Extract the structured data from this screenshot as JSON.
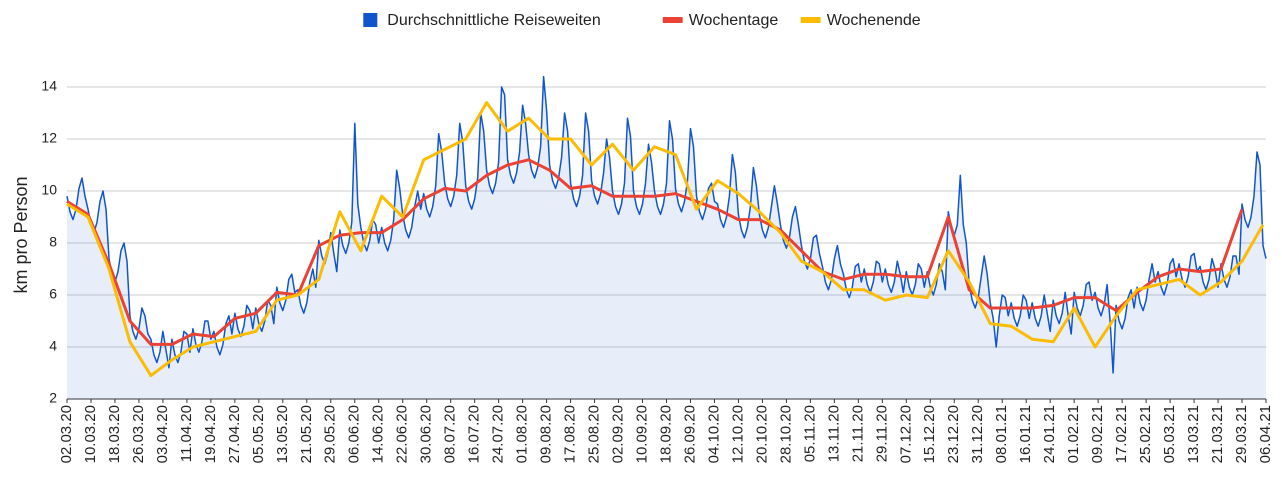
{
  "chart_data": {
    "type": "line",
    "y_label": "km pro Person",
    "xlim": [
      0,
      400
    ],
    "ylim": [
      2,
      14.6
    ],
    "yticks": [
      2,
      4,
      6,
      8,
      10,
      12,
      14
    ],
    "grid": true,
    "legend": "top",
    "xticks": [
      {
        "value": 0,
        "label": "02.03.20"
      },
      {
        "value": 8,
        "label": "10.03.20"
      },
      {
        "value": 16,
        "label": "18.03.20"
      },
      {
        "value": 24,
        "label": "26.03.20"
      },
      {
        "value": 32,
        "label": "03.04.20"
      },
      {
        "value": 40,
        "label": "11.04.20"
      },
      {
        "value": 48,
        "label": "19.04.20"
      },
      {
        "value": 56,
        "label": "27.04.20"
      },
      {
        "value": 64,
        "label": "05.05.20"
      },
      {
        "value": 72,
        "label": "13.05.20"
      },
      {
        "value": 80,
        "label": "21.05.20"
      },
      {
        "value": 88,
        "label": "29.05.20"
      },
      {
        "value": 96,
        "label": "06.06.20"
      },
      {
        "value": 104,
        "label": "14.06.20"
      },
      {
        "value": 112,
        "label": "22.06.20"
      },
      {
        "value": 120,
        "label": "30.06.20"
      },
      {
        "value": 128,
        "label": "08.07.20"
      },
      {
        "value": 136,
        "label": "16.07.20"
      },
      {
        "value": 144,
        "label": "24.07.20"
      },
      {
        "value": 152,
        "label": "01.08.20"
      },
      {
        "value": 160,
        "label": "09.08.20"
      },
      {
        "value": 168,
        "label": "17.08.20"
      },
      {
        "value": 176,
        "label": "25.08.20"
      },
      {
        "value": 184,
        "label": "02.09.20"
      },
      {
        "value": 192,
        "label": "10.09.20"
      },
      {
        "value": 200,
        "label": "18.09.20"
      },
      {
        "value": 208,
        "label": "26.09.20"
      },
      {
        "value": 216,
        "label": "04.10.20"
      },
      {
        "value": 224,
        "label": "12.10.20"
      },
      {
        "value": 232,
        "label": "20.10.20"
      },
      {
        "value": 240,
        "label": "28.10.20"
      },
      {
        "value": 248,
        "label": "05.11.20"
      },
      {
        "value": 256,
        "label": "13.11.20"
      },
      {
        "value": 264,
        "label": "21.11.20"
      },
      {
        "value": 272,
        "label": "29.11.20"
      },
      {
        "value": 280,
        "label": "07.12.20"
      },
      {
        "value": 288,
        "label": "15.12.20"
      },
      {
        "value": 296,
        "label": "23.12.20"
      },
      {
        "value": 304,
        "label": "31.12.20"
      },
      {
        "value": 312,
        "label": "08.01.21"
      },
      {
        "value": 320,
        "label": "16.01.21"
      },
      {
        "value": 328,
        "label": "24.01.21"
      },
      {
        "value": 336,
        "label": "01.02.21"
      },
      {
        "value": 344,
        "label": "09.02.21"
      },
      {
        "value": 352,
        "label": "17.02.21"
      },
      {
        "value": 360,
        "label": "25.02.21"
      },
      {
        "value": 368,
        "label": "05.03.21"
      },
      {
        "value": 376,
        "label": "13.03.21"
      },
      {
        "value": 384,
        "label": "21.03.21"
      },
      {
        "value": 392,
        "label": "29.03.21"
      },
      {
        "value": 400,
        "label": "06.04.21"
      }
    ],
    "series": [
      {
        "name": "Durchschnittliche Reiseweiten",
        "color": "#1155cc",
        "area": true,
        "x": [
          0,
          1,
          2,
          3,
          4,
          5,
          6,
          7,
          8,
          9,
          10,
          11,
          12,
          13,
          14,
          15,
          16,
          17,
          18,
          19,
          20,
          21,
          22,
          23,
          24,
          25,
          26,
          27,
          28,
          29,
          30,
          31,
          32,
          33,
          34,
          35,
          36,
          37,
          38,
          39,
          40,
          41,
          42,
          43,
          44,
          45,
          46,
          47,
          48,
          49,
          50,
          51,
          52,
          53,
          54,
          55,
          56,
          57,
          58,
          59,
          60,
          61,
          62,
          63,
          64,
          65,
          66,
          67,
          68,
          69,
          70,
          71,
          72,
          73,
          74,
          75,
          76,
          77,
          78,
          79,
          80,
          81,
          82,
          83,
          84,
          85,
          86,
          87,
          88,
          89,
          90,
          91,
          92,
          93,
          94,
          95,
          96,
          97,
          98,
          99,
          100,
          101,
          102,
          103,
          104,
          105,
          106,
          107,
          108,
          109,
          110,
          111,
          112,
          113,
          114,
          115,
          116,
          117,
          118,
          119,
          120,
          121,
          122,
          123,
          124,
          125,
          126,
          127,
          128,
          129,
          130,
          131,
          132,
          133,
          134,
          135,
          136,
          137,
          138,
          139,
          140,
          141,
          142,
          143,
          144,
          145,
          146,
          147,
          148,
          149,
          150,
          151,
          152,
          153,
          154,
          155,
          156,
          157,
          158,
          159,
          160,
          161,
          162,
          163,
          164,
          165,
          166,
          167,
          168,
          169,
          170,
          171,
          172,
          173,
          174,
          175,
          176,
          177,
          178,
          179,
          180,
          181,
          182,
          183,
          184,
          185,
          186,
          187,
          188,
          189,
          190,
          191,
          192,
          193,
          194,
          195,
          196,
          197,
          198,
          199,
          200,
          201,
          202,
          203,
          204,
          205,
          206,
          207,
          208,
          209,
          210,
          211,
          212,
          213,
          214,
          215,
          216,
          217,
          218,
          219,
          220,
          221,
          222,
          223,
          224,
          225,
          226,
          227,
          228,
          229,
          230,
          231,
          232,
          233,
          234,
          235,
          236,
          237,
          238,
          239,
          240,
          241,
          242,
          243,
          244,
          245,
          246,
          247,
          248,
          249,
          250,
          251,
          252,
          253,
          254,
          255,
          256,
          257,
          258,
          259,
          260,
          261,
          262,
          263,
          264,
          265,
          266,
          267,
          268,
          269,
          270,
          271,
          272,
          273,
          274,
          275,
          276,
          277,
          278,
          279,
          280,
          281,
          282,
          283,
          284,
          285,
          286,
          287,
          288,
          289,
          290,
          291,
          292,
          293,
          294,
          295,
          296,
          297,
          298,
          299,
          300,
          301,
          302,
          303,
          304,
          305,
          306,
          307,
          308,
          309,
          310,
          311,
          312,
          313,
          314,
          315,
          316,
          317,
          318,
          319,
          320,
          321,
          322,
          323,
          324,
          325,
          326,
          327,
          328,
          329,
          330,
          331,
          332,
          333,
          334,
          335,
          336,
          337,
          338,
          339,
          340,
          341,
          342,
          343,
          344,
          345,
          346,
          347,
          348,
          349,
          350,
          351,
          352,
          353,
          354,
          355,
          356,
          357,
          358,
          359,
          360,
          361,
          362,
          363,
          364,
          365,
          366,
          367,
          368,
          369,
          370,
          371,
          372,
          373,
          374,
          375,
          376,
          377,
          378,
          379,
          380,
          381,
          382,
          383,
          384,
          385,
          386,
          387,
          388,
          389,
          390,
          391,
          392,
          393,
          394,
          395,
          396,
          397,
          398,
          399,
          400
        ],
        "values": [
          9.8,
          9.2,
          8.9,
          9.3,
          10.1,
          10.5,
          9.8,
          9.3,
          8.7,
          8.4,
          8.8,
          9.6,
          10.0,
          9.3,
          7.4,
          6.8,
          6.5,
          6.9,
          7.7,
          8.0,
          7.3,
          5.2,
          4.6,
          4.3,
          4.7,
          5.5,
          5.2,
          4.5,
          4.3,
          3.7,
          3.4,
          3.8,
          4.6,
          3.9,
          3.2,
          4.3,
          3.7,
          3.4,
          3.8,
          4.6,
          4.5,
          3.8,
          4.7,
          4.1,
          3.8,
          4.2,
          5.0,
          5.0,
          4.3,
          4.6,
          4.0,
          3.7,
          4.1,
          4.9,
          5.2,
          4.5,
          5.3,
          4.7,
          4.4,
          4.8,
          5.6,
          5.4,
          4.7,
          5.5,
          4.9,
          4.6,
          5.0,
          5.8,
          5.6,
          4.9,
          6.3,
          5.7,
          5.4,
          5.8,
          6.6,
          6.8,
          6.1,
          6.2,
          5.6,
          5.3,
          5.7,
          6.5,
          7.0,
          6.3,
          8.1,
          7.5,
          7.2,
          7.6,
          8.4,
          7.6,
          6.9,
          8.5,
          7.9,
          7.6,
          8.0,
          8.8,
          12.6,
          9.5,
          8.6,
          8.0,
          7.7,
          8.1,
          8.9,
          8.7,
          8.0,
          8.6,
          8.0,
          7.7,
          8.1,
          8.9,
          10.8,
          10.1,
          9.1,
          8.5,
          8.2,
          8.6,
          9.4,
          10.0,
          9.3,
          9.9,
          9.3,
          9.0,
          9.4,
          10.2,
          12.2,
          11.5,
          10.3,
          9.7,
          9.4,
          9.8,
          10.6,
          12.6,
          11.9,
          10.2,
          9.6,
          9.3,
          9.7,
          10.5,
          13.0,
          12.3,
          10.8,
          10.2,
          9.9,
          10.3,
          11.1,
          14.0,
          13.7,
          11.2,
          10.6,
          10.3,
          10.7,
          11.5,
          13.3,
          12.6,
          11.4,
          10.8,
          10.5,
          10.9,
          11.7,
          14.4,
          13.1,
          11.0,
          10.4,
          10.1,
          10.5,
          11.3,
          13.0,
          12.3,
          10.3,
          9.7,
          9.4,
          9.8,
          10.6,
          13.0,
          12.3,
          10.4,
          9.8,
          9.5,
          9.9,
          10.7,
          12.0,
          11.3,
          10.0,
          9.4,
          9.1,
          9.5,
          10.3,
          12.8,
          12.1,
          10.0,
          9.4,
          9.1,
          9.5,
          10.3,
          11.8,
          11.1,
          10.0,
          9.4,
          9.1,
          9.5,
          10.3,
          12.7,
          12.0,
          10.1,
          9.5,
          9.2,
          9.6,
          10.4,
          12.4,
          11.7,
          9.8,
          9.2,
          8.9,
          9.3,
          10.1,
          10.3,
          9.6,
          9.5,
          8.9,
          8.6,
          9.0,
          9.8,
          11.4,
          10.7,
          9.1,
          8.5,
          8.2,
          8.6,
          9.4,
          10.9,
          10.2,
          9.1,
          8.5,
          8.2,
          8.6,
          9.4,
          10.2,
          9.5,
          8.7,
          8.1,
          7.8,
          8.2,
          9.0,
          9.4,
          8.7,
          7.9,
          7.3,
          7.0,
          7.4,
          8.2,
          8.3,
          7.6,
          7.1,
          6.5,
          6.2,
          6.6,
          7.4,
          7.9,
          7.2,
          6.8,
          6.2,
          5.9,
          6.3,
          7.1,
          7.2,
          6.5,
          7.0,
          6.4,
          6.1,
          6.5,
          7.3,
          7.2,
          6.5,
          7.0,
          6.4,
          6.1,
          6.5,
          7.3,
          6.8,
          6.1,
          6.9,
          6.3,
          6.0,
          6.4,
          7.2,
          7.0,
          6.3,
          6.9,
          6.3,
          6.0,
          6.4,
          7.2,
          6.9,
          6.2,
          9.2,
          8.6,
          8.3,
          8.7,
          10.6,
          8.7,
          8.0,
          6.4,
          5.8,
          5.5,
          5.9,
          6.7,
          7.5,
          6.8,
          5.7,
          5.1,
          4.0,
          5.2,
          6.0,
          5.9,
          5.2,
          5.7,
          5.1,
          4.8,
          5.2,
          6.0,
          5.8,
          5.1,
          5.7,
          5.1,
          4.8,
          5.2,
          6.0,
          5.3,
          4.6,
          5.8,
          5.2,
          4.9,
          5.3,
          6.1,
          5.2,
          4.5,
          6.1,
          5.5,
          5.2,
          5.6,
          6.4,
          6.5,
          5.8,
          6.1,
          5.5,
          5.2,
          5.6,
          6.4,
          5.0,
          3.0,
          5.6,
          5.0,
          4.7,
          5.1,
          5.9,
          6.2,
          5.5,
          6.3,
          5.7,
          5.4,
          5.8,
          6.6,
          7.2,
          6.5,
          6.9,
          6.3,
          6.0,
          6.4,
          7.2,
          7.4,
          6.7,
          7.2,
          6.6,
          6.3,
          6.7,
          7.5,
          7.6,
          6.9,
          7.1,
          6.5,
          6.2,
          6.6,
          7.4,
          7.0,
          6.3,
          7.2,
          6.6,
          6.3,
          6.7,
          7.5,
          7.5,
          6.8,
          9.5,
          8.9,
          8.6,
          9.0,
          9.8,
          11.5,
          11.0,
          7.9,
          7.4
        ]
      },
      {
        "name": "Wochentage",
        "color": "#ea4335",
        "x": [
          0,
          7,
          14,
          21,
          28,
          35,
          42,
          49,
          56,
          63,
          70,
          77,
          84,
          91,
          98,
          105,
          112,
          119,
          126,
          133,
          140,
          147,
          154,
          161,
          168,
          175,
          182,
          189,
          196,
          203,
          210,
          217,
          224,
          231,
          238,
          245,
          252,
          259,
          266,
          273,
          280,
          287,
          294,
          301,
          308,
          315,
          322,
          329,
          336,
          343,
          350,
          357,
          364,
          371,
          378,
          385,
          392
        ],
        "values": [
          9.6,
          9.1,
          7.2,
          5.0,
          4.1,
          4.1,
          4.5,
          4.4,
          5.1,
          5.3,
          6.1,
          6.0,
          7.9,
          8.3,
          8.4,
          8.4,
          8.9,
          9.7,
          10.1,
          10.0,
          10.6,
          11.0,
          11.2,
          10.8,
          10.1,
          10.2,
          9.8,
          9.8,
          9.8,
          9.9,
          9.6,
          9.3,
          8.9,
          8.9,
          8.5,
          7.7,
          6.9,
          6.6,
          6.8,
          6.8,
          6.7,
          6.7,
          9.0,
          6.2,
          5.5,
          5.5,
          5.5,
          5.6,
          5.9,
          5.9,
          5.4,
          6.1,
          6.7,
          7.0,
          6.9,
          7.0,
          9.3
        ]
      },
      {
        "name": "Wochenende",
        "color": "#fbbc04",
        "x": [
          0,
          7,
          14,
          21,
          28,
          35,
          42,
          49,
          56,
          63,
          70,
          77,
          84,
          91,
          98,
          105,
          112,
          119,
          126,
          133,
          140,
          147,
          154,
          161,
          168,
          175,
          182,
          189,
          196,
          203,
          210,
          217,
          224,
          231,
          238,
          245,
          252,
          259,
          266,
          273,
          280,
          287,
          294,
          301,
          308,
          315,
          322,
          329,
          336,
          343,
          350,
          357,
          364,
          371,
          378,
          385,
          392,
          399
        ],
        "values": [
          9.5,
          9.0,
          7.0,
          4.2,
          2.9,
          3.5,
          4.0,
          4.2,
          4.4,
          4.6,
          5.8,
          6.0,
          6.6,
          9.2,
          7.7,
          9.8,
          9.0,
          11.2,
          11.6,
          12.0,
          13.4,
          12.3,
          12.8,
          12.0,
          12.0,
          11.0,
          11.8,
          10.8,
          11.7,
          11.4,
          9.3,
          10.4,
          9.9,
          9.2,
          8.4,
          7.3,
          6.9,
          6.2,
          6.2,
          5.8,
          6.0,
          5.9,
          7.7,
          6.5,
          4.9,
          4.8,
          4.3,
          4.2,
          5.5,
          4.0,
          5.2,
          6.2,
          6.4,
          6.6,
          6.0,
          6.5,
          7.3,
          8.7
        ]
      }
    ]
  }
}
